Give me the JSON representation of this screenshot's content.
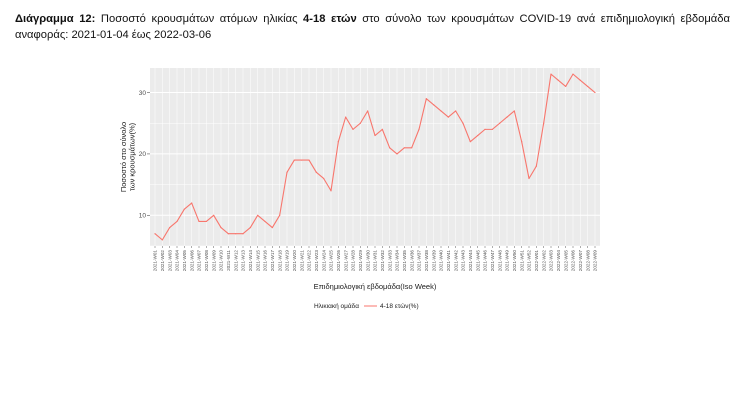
{
  "caption": {
    "label": "Διάγραμμα 12:",
    "text1": " Ποσοστό κρουσμάτων ατόμων ηλικίας ",
    "bold": "4-18 ετών",
    "text2": " στο σύνολο των κρουσμάτων COVID-19 ανά επιδημιολογική εβδομάδα αναφοράς: 2021-01-04 έως 2022-03-06"
  },
  "legend": {
    "title": "Ηλικιακή ομάδα",
    "series_label": "4-18 ετών(%)"
  },
  "colors": {
    "panel": "#ebebeb",
    "grid": "#ffffff",
    "line": "#f8766d"
  },
  "chart_data": {
    "type": "line",
    "title": "",
    "xlabel": "Επιδημιολογική εβδομάδα(Iso Week)",
    "ylabel": "Ποσοστό στο σύνολο των κρουσμάτων(%)",
    "ylabel_lines": [
      "Ποσοστό στο σύνολο",
      "των κρουσμάτων(%)"
    ],
    "ylim": [
      5,
      34
    ],
    "yticks": [
      10,
      20,
      30
    ],
    "grid": true,
    "legend_position": "bottom",
    "x": [
      "2021-W01",
      "2021-W02",
      "2021-W03",
      "2021-W04",
      "2021-W05",
      "2021-W06",
      "2021-W07",
      "2021-W08",
      "2021-W09",
      "2021-W10",
      "2021-W11",
      "2021-W12",
      "2021-W13",
      "2021-W14",
      "2021-W15",
      "2021-W16",
      "2021-W17",
      "2021-W18",
      "2021-W19",
      "2021-W20",
      "2021-W21",
      "2021-W22",
      "2021-W23",
      "2021-W24",
      "2021-W25",
      "2021-W26",
      "2021-W27",
      "2021-W28",
      "2021-W29",
      "2021-W30",
      "2021-W31",
      "2021-W32",
      "2021-W33",
      "2021-W34",
      "2021-W35",
      "2021-W36",
      "2021-W37",
      "2021-W38",
      "2021-W39",
      "2021-W40",
      "2021-W41",
      "2021-W42",
      "2021-W43",
      "2021-W44",
      "2021-W45",
      "2021-W46",
      "2021-W47",
      "2021-W48",
      "2021-W49",
      "2021-W50",
      "2021-W51",
      "2021-W52",
      "2022-W01",
      "2022-W02",
      "2022-W03",
      "2022-W04",
      "2022-W05",
      "2022-W06",
      "2022-W07",
      "2022-W08",
      "2022-W09"
    ],
    "series": [
      {
        "name": "4-18 ετών(%)",
        "values": [
          7,
          6,
          8,
          9,
          11,
          12,
          9,
          9,
          10,
          8,
          7,
          7,
          7,
          8,
          10,
          9,
          8,
          10,
          17,
          19,
          19,
          19,
          17,
          16,
          14,
          22,
          26,
          24,
          25,
          27,
          23,
          24,
          21,
          20,
          21,
          21,
          24,
          29,
          28,
          27,
          26,
          27,
          25,
          22,
          23,
          24,
          24,
          25,
          26,
          27,
          22,
          16,
          18,
          25,
          33,
          32,
          31,
          33,
          32,
          31,
          30
        ]
      }
    ]
  }
}
